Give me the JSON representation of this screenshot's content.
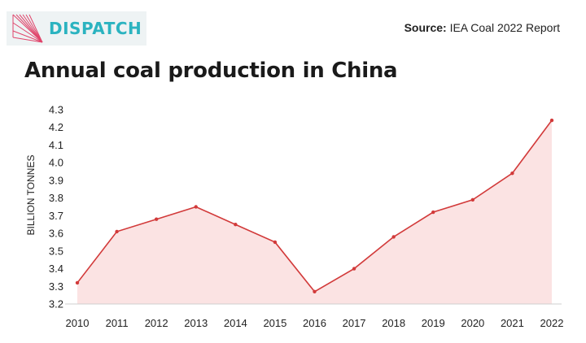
{
  "brand": {
    "name": "DISPATCH",
    "logo_icon": "dispatch-fan-icon",
    "color": "#2bb3c0"
  },
  "source": {
    "label": "Source:",
    "text": "IEA Coal 2022 Report"
  },
  "chart_data": {
    "type": "area",
    "title": "Annual coal production in China",
    "xlabel": "",
    "ylabel": "BILLION TONNES",
    "x": [
      "2010",
      "2011",
      "2012",
      "2013",
      "2014",
      "2015",
      "2016",
      "2017",
      "2018",
      "2019",
      "2020",
      "2021",
      "2022"
    ],
    "series": [
      {
        "values": [
          3.32,
          3.61,
          3.68,
          3.75,
          3.65,
          3.55,
          3.27,
          3.4,
          3.58,
          3.72,
          3.79,
          3.94,
          4.24
        ]
      }
    ],
    "ylim": [
      3.2,
      4.3
    ],
    "yticks": [
      "3.2",
      "3.3",
      "3.4",
      "3.5",
      "3.6",
      "3.7",
      "3.8",
      "3.9",
      "4.0",
      "4.1",
      "4.2",
      "4.3"
    ],
    "grid": false,
    "line_color": "#d23a3a",
    "fill_color": "#fbe3e3"
  }
}
